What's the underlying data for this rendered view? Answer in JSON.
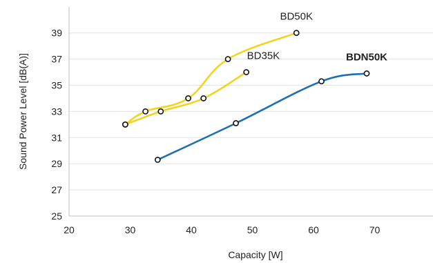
{
  "chart_data": {
    "type": "line",
    "xlabel": "Capacity [W]",
    "ylabel": "Sound Power Level [dB(A)]",
    "xlim": [
      20,
      80
    ],
    "ylim": [
      25,
      41
    ],
    "x_ticks": [
      20,
      30,
      40,
      50,
      60,
      70
    ],
    "y_ticks": [
      25,
      27,
      29,
      31,
      33,
      35,
      37,
      39
    ],
    "grid": "horizontal",
    "legend": "none",
    "series": [
      {
        "name": "BD50K",
        "color": "#F2D31F",
        "emphasis": "normal",
        "points": [
          [
            29.2,
            32
          ],
          [
            32.5,
            33
          ],
          [
            39.5,
            34
          ],
          [
            46,
            37
          ],
          [
            57.2,
            39
          ]
        ]
      },
      {
        "name": "BD35K",
        "color": "#F2D31F",
        "emphasis": "normal",
        "points": [
          [
            29.2,
            32
          ],
          [
            35,
            33
          ],
          [
            42,
            34
          ],
          [
            49,
            36
          ]
        ]
      },
      {
        "name": "BDN50K",
        "color": "#1F6FAE",
        "emphasis": "bold",
        "points": [
          [
            34.5,
            29.3
          ],
          [
            47.3,
            32.1
          ],
          [
            61.3,
            35.3
          ],
          [
            68.7,
            35.9
          ]
        ]
      }
    ]
  }
}
